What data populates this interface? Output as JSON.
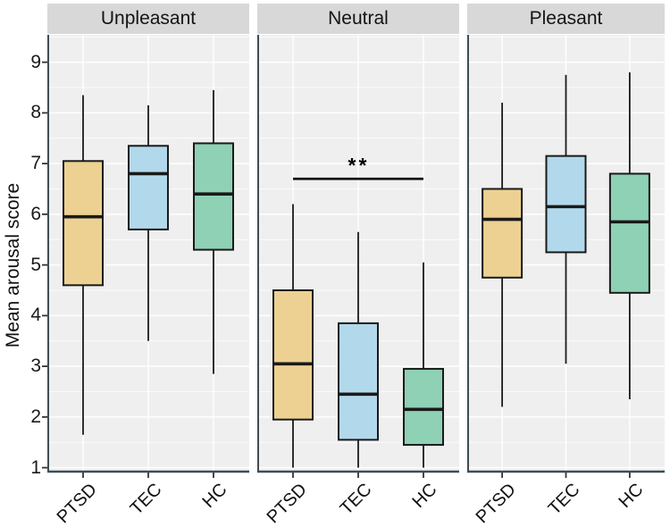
{
  "chart_data": {
    "type": "boxplot",
    "title": "",
    "ylabel": "Mean arousal score",
    "xlabel": "",
    "facets": [
      "Unpleasant",
      "Neutral",
      "Pleasant"
    ],
    "groups": [
      "PTSD",
      "TEC",
      "HC"
    ],
    "yticks": [
      1,
      2,
      3,
      4,
      5,
      6,
      7,
      8,
      9
    ],
    "ylim": [
      0.94,
      9.54
    ],
    "grid": "white major and minor horizontal gridlines on grey panel, vertical gridline at each group position, legend none",
    "group_colors": {
      "PTSD": "#ecd192",
      "TEC": "#b2d8eb",
      "HC": "#8ed1b4"
    },
    "style": {
      "panel_bg": "#efefef",
      "strip_bg": "#d8d8d8",
      "grid_color": "#ffffff",
      "box_stroke": "#1a1a1a",
      "axis_color": "#3e4d56",
      "tick_color": "#333333",
      "sig_color": "#000000"
    },
    "boxes": [
      {
        "facet": "Unpleasant",
        "group": "PTSD",
        "whisker_low": 1.65,
        "q1": 4.6,
        "median": 5.95,
        "q3": 7.05,
        "whisker_high": 8.35
      },
      {
        "facet": "Unpleasant",
        "group": "TEC",
        "whisker_low": 3.5,
        "q1": 5.7,
        "median": 6.8,
        "q3": 7.35,
        "whisker_high": 8.15
      },
      {
        "facet": "Unpleasant",
        "group": "HC",
        "whisker_low": 2.85,
        "q1": 5.3,
        "median": 6.4,
        "q3": 7.4,
        "whisker_high": 8.45
      },
      {
        "facet": "Neutral",
        "group": "PTSD",
        "whisker_low": 1.0,
        "q1": 1.95,
        "median": 3.05,
        "q3": 4.5,
        "whisker_high": 6.2
      },
      {
        "facet": "Neutral",
        "group": "TEC",
        "whisker_low": 1.0,
        "q1": 1.55,
        "median": 2.45,
        "q3": 3.85,
        "whisker_high": 5.65
      },
      {
        "facet": "Neutral",
        "group": "HC",
        "whisker_low": 1.0,
        "q1": 1.45,
        "median": 2.15,
        "q3": 2.95,
        "whisker_high": 5.05
      },
      {
        "facet": "Pleasant",
        "group": "PTSD",
        "whisker_low": 2.2,
        "q1": 4.75,
        "median": 5.9,
        "q3": 6.5,
        "whisker_high": 8.2
      },
      {
        "facet": "Pleasant",
        "group": "TEC",
        "whisker_low": 3.05,
        "q1": 5.25,
        "median": 6.15,
        "q3": 7.15,
        "whisker_high": 8.75
      },
      {
        "facet": "Pleasant",
        "group": "HC",
        "whisker_low": 2.35,
        "q1": 4.45,
        "median": 5.85,
        "q3": 6.8,
        "whisker_high": 8.8
      }
    ],
    "annotations": [
      {
        "facet": "Neutral",
        "type": "significance_bracket",
        "from_group": "PTSD",
        "to_group": "HC",
        "y": 6.7,
        "label": "**"
      }
    ]
  }
}
